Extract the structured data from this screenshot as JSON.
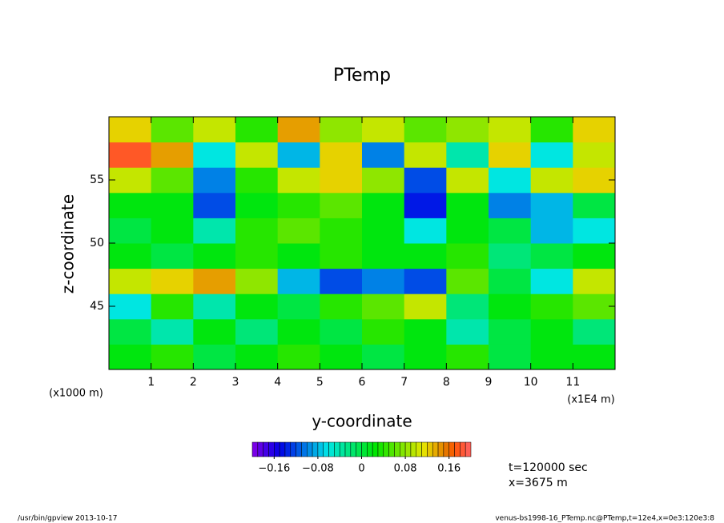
{
  "chart_data": {
    "type": "heatmap",
    "title": "PTemp",
    "x_label": "y-coordinate",
    "y_label": "z-coordinate",
    "x_unit_label": "(x1E4 m)",
    "y_unit_label": "(x1000 m)",
    "xlim": [
      0,
      12
    ],
    "ylim": [
      40,
      60
    ],
    "xticks": [
      1,
      2,
      3,
      4,
      5,
      6,
      7,
      8,
      9,
      10,
      11
    ],
    "yticks": [
      45,
      50,
      55
    ],
    "x": [
      0.5,
      1.5,
      2.5,
      3.5,
      4.5,
      5.5,
      6.5,
      7.5,
      8.5,
      9.5,
      10.5,
      11.5
    ],
    "y": [
      41,
      43,
      45,
      47,
      49,
      51,
      53,
      55,
      57,
      59
    ],
    "z": [
      [
        0.02,
        0.04,
        0.0,
        0.02,
        0.04,
        0.02,
        0.0,
        0.02,
        0.04,
        0.0,
        0.02,
        0.02
      ],
      [
        0.0,
        -0.04,
        0.02,
        -0.02,
        0.02,
        0.0,
        0.04,
        0.02,
        -0.04,
        0.0,
        0.02,
        -0.02
      ],
      [
        -0.06,
        0.04,
        -0.04,
        0.02,
        0.0,
        0.04,
        0.06,
        0.1,
        -0.02,
        0.02,
        0.04,
        0.06
      ],
      [
        0.1,
        0.12,
        0.14,
        0.08,
        -0.08,
        -0.12,
        -0.1,
        -0.12,
        0.06,
        0.0,
        -0.06,
        0.1
      ],
      [
        0.02,
        0.0,
        0.02,
        0.04,
        0.02,
        0.04,
        0.02,
        0.02,
        0.04,
        -0.02,
        0.0,
        0.02
      ],
      [
        0.0,
        0.02,
        -0.04,
        0.04,
        0.06,
        0.04,
        0.02,
        -0.06,
        0.02,
        0.0,
        -0.08,
        -0.06
      ],
      [
        0.02,
        0.02,
        -0.12,
        0.02,
        0.04,
        0.06,
        0.02,
        -0.14,
        0.02,
        -0.1,
        -0.08,
        0.0
      ],
      [
        0.1,
        0.06,
        -0.1,
        0.04,
        0.1,
        0.12,
        0.08,
        -0.12,
        0.1,
        -0.06,
        0.1,
        0.12
      ],
      [
        0.18,
        0.14,
        -0.06,
        0.1,
        -0.08,
        0.12,
        -0.1,
        0.1,
        -0.04,
        0.12,
        -0.06,
        0.1
      ],
      [
        0.12,
        0.06,
        0.1,
        0.04,
        0.14,
        0.08,
        0.1,
        0.06,
        0.08,
        0.1,
        0.04,
        0.12
      ]
    ],
    "clim": [
      -0.2,
      0.2
    ],
    "cticks": [
      {
        "value": -0.16,
        "label": "−0.16"
      },
      {
        "value": -0.08,
        "label": "−0.08"
      },
      0,
      0.08,
      0.16
    ],
    "annotations": [
      "t=120000 sec",
      "x=3675 m"
    ],
    "footer_left": "/usr/bin/gpview   2013-10-17",
    "footer_right": "venus-bs1998-16_PTemp.nc@PTemp,t=12e4,x=0e3:120e3:8"
  }
}
